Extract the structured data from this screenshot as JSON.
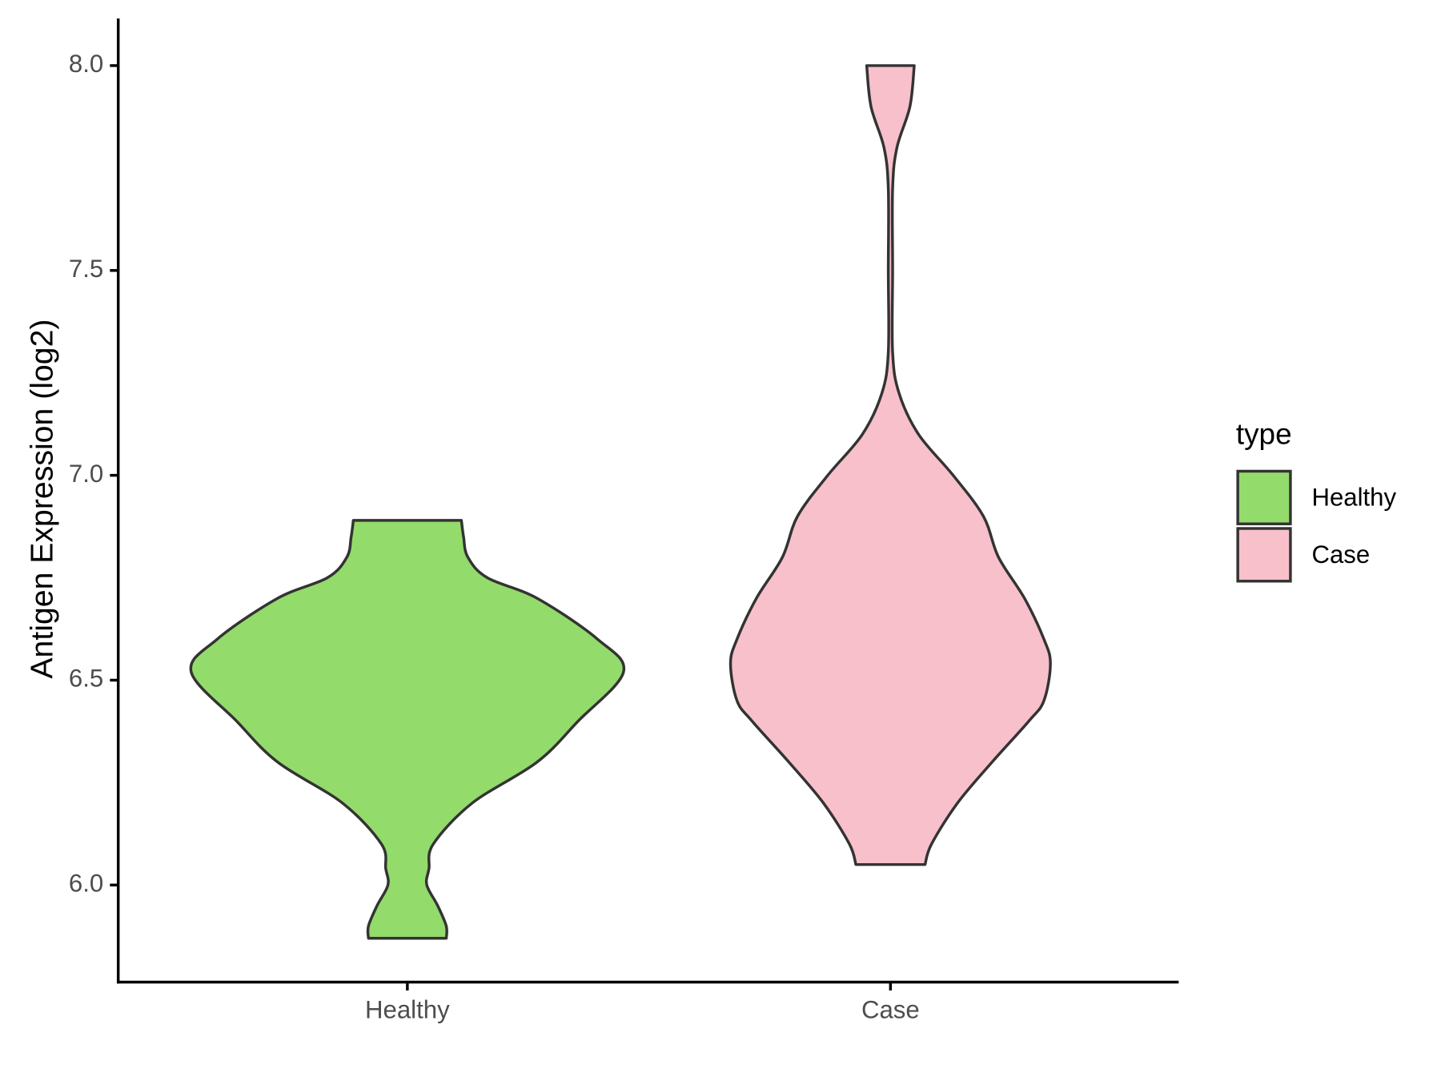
{
  "chart_data": {
    "type": "violin",
    "y_label": "Antigen Expression (log2)",
    "categories": [
      "Healthy",
      "Case"
    ],
    "legend_title": "type",
    "legend_position": "right",
    "ylim": [
      5.763,
      8.115
    ],
    "yticks": [
      {
        "value": 6.0,
        "label": "6.0"
      },
      {
        "value": 6.5,
        "label": "6.5"
      },
      {
        "value": 7.0,
        "label": "7.0"
      },
      {
        "value": 7.5,
        "label": "7.5"
      },
      {
        "value": 8.0,
        "label": "8.0"
      }
    ],
    "series": [
      {
        "name": "Healthy",
        "color": "#93db6b",
        "y": [
          5.87,
          5.9,
          5.95,
          6.0,
          6.04,
          6.1,
          6.2,
          6.3,
          6.4,
          6.52,
          6.6,
          6.7,
          6.75,
          6.8,
          6.85,
          6.89
        ],
        "density": [
          0.18,
          0.18,
          0.14,
          0.09,
          0.1,
          0.12,
          0.3,
          0.6,
          0.79,
          1.0,
          0.88,
          0.6,
          0.37,
          0.28,
          0.26,
          0.25
        ]
      },
      {
        "name": "Case",
        "color": "#f7c0ca",
        "y": [
          6.05,
          6.1,
          6.2,
          6.3,
          6.4,
          6.45,
          6.54,
          6.6,
          6.7,
          6.8,
          6.9,
          7.0,
          7.1,
          7.2,
          7.3,
          7.5,
          7.7,
          7.8,
          7.9,
          8.0
        ],
        "density": [
          0.16,
          0.19,
          0.31,
          0.47,
          0.64,
          0.71,
          0.74,
          0.71,
          0.62,
          0.5,
          0.43,
          0.29,
          0.13,
          0.04,
          0.01,
          0.01,
          0.01,
          0.03,
          0.09,
          0.11
        ]
      }
    ]
  }
}
